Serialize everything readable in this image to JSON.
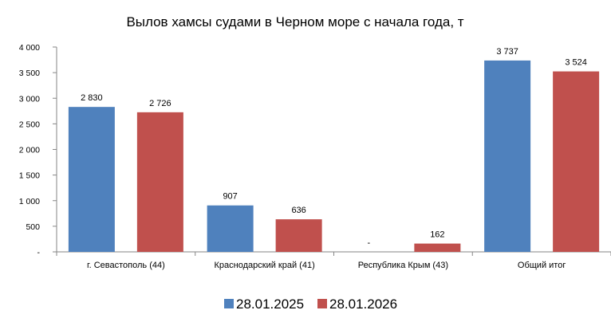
{
  "chart_data": {
    "type": "bar",
    "title": "Вылов хамсы судами в Черном море с начала  года, т",
    "categories": [
      "г. Севастополь (44)",
      "Краснодарский край (41)",
      "Республика Крым (43)",
      "Общий итог"
    ],
    "series": [
      {
        "name": "28.01.2025",
        "color": "#4F81BD",
        "values": [
          2830,
          907,
          0,
          3737
        ],
        "labels": [
          "2 830",
          "907",
          "-",
          "3 737"
        ]
      },
      {
        "name": "28.01.2026",
        "color": "#C0504D",
        "values": [
          2726,
          636,
          162,
          3524
        ],
        "labels": [
          "2 726",
          "636",
          "162",
          "3 524"
        ]
      }
    ],
    "ylim": [
      0,
      4000
    ],
    "yticks": [
      0,
      500,
      1000,
      1500,
      2000,
      2500,
      3000,
      3500,
      4000
    ],
    "ytick_labels": [
      "-",
      "500",
      "1 000",
      "1 500",
      "2 000",
      "2 500",
      "3 000",
      "3 500",
      "4 000"
    ],
    "xlabel": "",
    "ylabel": "",
    "grid": false,
    "legend": "bottom"
  }
}
